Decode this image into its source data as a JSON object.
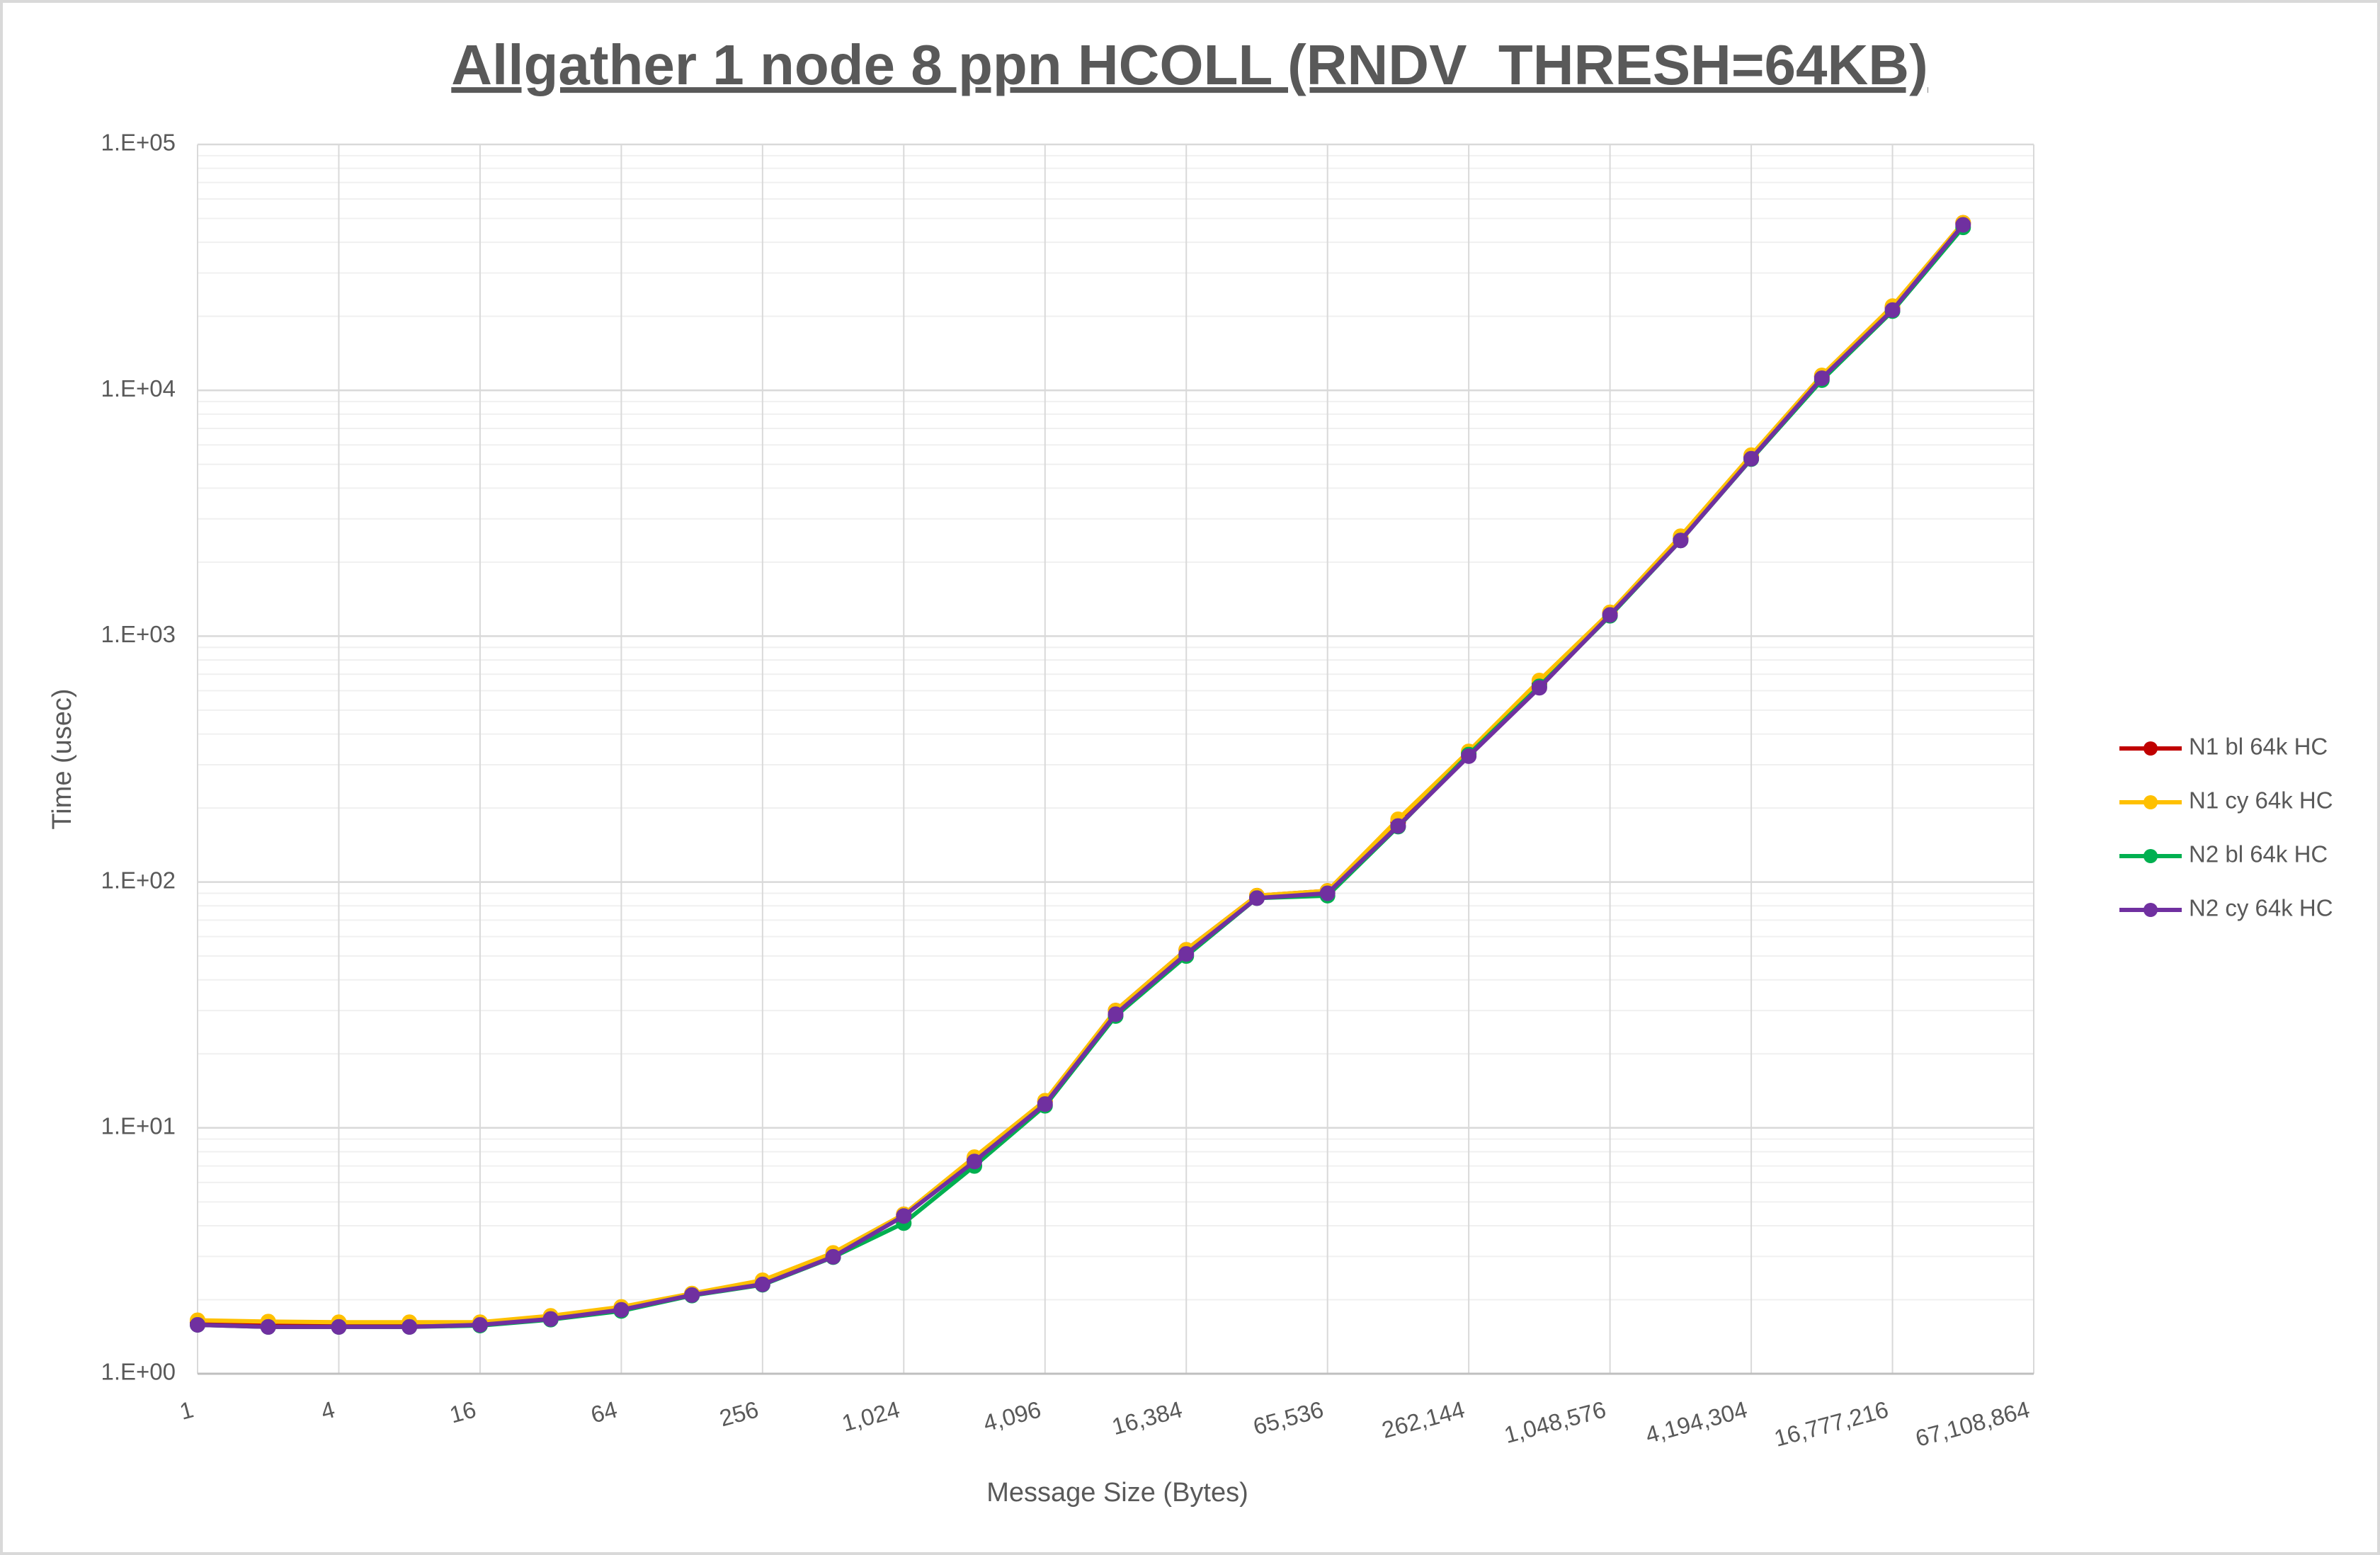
{
  "chart_data": {
    "type": "line",
    "title": "Allgather 1 node 8 ppn HCOLL (RNDV_THRESH=64KB)",
    "x_label": "Message Size (Bytes)",
    "y_label": "Time (usec)",
    "categories": [
      "1",
      null,
      "4",
      null,
      "16",
      null,
      "64",
      null,
      "256",
      null,
      "1,024",
      null,
      "4,096",
      null,
      "16,384",
      null,
      "65,536",
      null,
      "262,144",
      null,
      "1,048,576",
      null,
      "4,194,304",
      null,
      "16,777,216",
      null,
      "67,108,864"
    ],
    "y_log": true,
    "ylim": [
      1,
      100000
    ],
    "yticks": [
      {
        "value": 1,
        "label": "1.E+00"
      },
      {
        "value": 10,
        "label": "1.E+01"
      },
      {
        "value": 100,
        "label": "1.E+02"
      },
      {
        "value": 1000,
        "label": "1.E+03"
      },
      {
        "value": 10000,
        "label": "1.E+04"
      },
      {
        "value": 100000,
        "label": "1.E+05"
      }
    ],
    "grid": true,
    "legend": "right",
    "series": [
      {
        "name": "N1 bl 64k HC",
        "color": "#c00000",
        "values": [
          1.62,
          1.6,
          1.6,
          1.6,
          1.6,
          1.7,
          1.85,
          2.1,
          2.35,
          3.05,
          4.45,
          7.5,
          12.8,
          30,
          53,
          88,
          92,
          175,
          335,
          640,
          1240,
          2500,
          5350,
          11400,
          21800,
          48000,
          null
        ]
      },
      {
        "name": "N1 cy 64k HC",
        "color": "#ffc000",
        "values": [
          1.65,
          1.63,
          1.62,
          1.62,
          1.62,
          1.72,
          1.87,
          2.12,
          2.4,
          3.1,
          4.45,
          7.6,
          12.9,
          30,
          53,
          88,
          92,
          180,
          340,
          660,
          1250,
          2550,
          5450,
          11500,
          22000,
          48000,
          null
        ]
      },
      {
        "name": "N2 bl 64k HC",
        "color": "#00b050",
        "values": [
          1.58,
          1.55,
          1.55,
          1.55,
          1.57,
          1.66,
          1.8,
          2.08,
          2.3,
          2.98,
          4.1,
          7.0,
          12.3,
          28.5,
          50,
          86,
          88,
          168,
          330,
          625,
          1210,
          2450,
          5250,
          11000,
          21000,
          46000,
          null
        ]
      },
      {
        "name": "N2 cy 64k HC",
        "color": "#7030a0",
        "values": [
          1.58,
          1.55,
          1.55,
          1.55,
          1.58,
          1.67,
          1.82,
          2.09,
          2.31,
          2.99,
          4.38,
          7.3,
          12.5,
          29,
          51,
          86,
          90,
          169,
          325,
          617,
          1220,
          2450,
          5270,
          11200,
          21200,
          47100,
          null
        ]
      }
    ]
  }
}
